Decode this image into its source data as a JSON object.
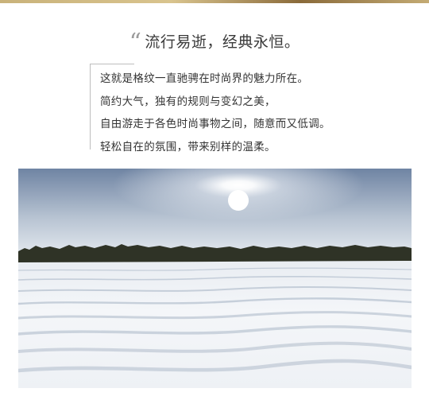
{
  "headline": {
    "quote_glyph": "“",
    "text": "流行易逝，经典永恒。"
  },
  "body": {
    "lines": [
      "这就是格纹一直驰骋在时尚界的魅力所在。",
      "简约大气，独有的规则与变幻之美，",
      "自由游走于各色时尚事物之间，随意而又低调。",
      "轻松自在的氛围，带来别样的温柔。"
    ]
  },
  "colors": {
    "sky_top": "#6f84a3",
    "sky_horizon": "#e6ebf0",
    "treeline": "#2f3326",
    "snow": "#f4f6f8",
    "snow_shadow": "#a9b6c6"
  },
  "photo": {
    "subject_icon": "snow-field-photo"
  }
}
